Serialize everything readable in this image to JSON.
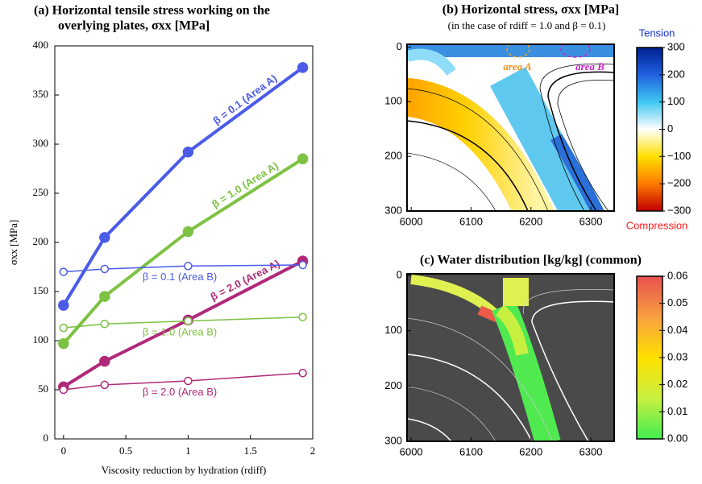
{
  "chart_data": [
    {
      "type": "line",
      "title": [
        "(a) Horizontal tensile stress working on the",
        "overlying plates, σxx [MPa]"
      ],
      "xlabel": "Viscosity reduction by hydration (rdiff)",
      "ylabel": "σxx [MPa]",
      "x": [
        0,
        0.33,
        1,
        1.92
      ],
      "xlim": [
        -0.07,
        2
      ],
      "xticks": [
        0,
        0.5,
        1,
        1.5,
        2
      ],
      "ylim": [
        0,
        400
      ],
      "yticks": [
        0,
        50,
        100,
        150,
        200,
        250,
        300,
        350,
        400
      ],
      "series": [
        {
          "name": "β = 0.1 (Area A)",
          "color": "#4a5be8",
          "marker": "filled",
          "linewidth": 4,
          "values": [
            136,
            205,
            292,
            378
          ]
        },
        {
          "name": "β = 1.0 (Area A)",
          "color": "#7dc242",
          "marker": "filled",
          "linewidth": 4,
          "values": [
            97,
            145,
            211,
            285
          ]
        },
        {
          "name": "β = 2.0 (Area A)",
          "color": "#b0287a",
          "marker": "filled",
          "linewidth": 4,
          "values": [
            53,
            79,
            121,
            181
          ]
        },
        {
          "name": "β = 0.1 (Area B)",
          "color": "#4a5be8",
          "marker": "open",
          "linewidth": 1.5,
          "values": [
            170,
            173,
            176,
            177
          ]
        },
        {
          "name": "β = 1.0 (Area B)",
          "color": "#7dc242",
          "marker": "open",
          "linewidth": 1.5,
          "values": [
            113,
            117,
            120,
            124
          ]
        },
        {
          "name": "β = 2.0 (Area B)",
          "color": "#b0287a",
          "marker": "open",
          "linewidth": 1.5,
          "values": [
            50,
            55,
            59,
            67
          ]
        }
      ]
    },
    {
      "type": "heatmap",
      "title": "(b) Horizontal stress, σxx [MPa]",
      "subtitle": "(in the case of rdiff = 1.0 and β = 0.1)",
      "annotations": [
        "area A",
        "area B"
      ],
      "xlim": [
        5993,
        6339
      ],
      "xticks": [
        6000,
        6100,
        6200,
        6300
      ],
      "ylim": [
        300,
        -5
      ],
      "yticks": [
        0,
        100,
        200,
        300
      ],
      "colorbar": {
        "colors": [
          "#c00000",
          "#ff7a00",
          "#ffe000",
          "#ffffff",
          "#40c8f0",
          "#2060e0",
          "#002090"
        ],
        "lim": [
          -300,
          300
        ],
        "ticks": [
          300,
          200,
          100,
          0,
          {
            "value": -100,
            "label": "−100"
          },
          {
            "value": -200,
            "label": "−200"
          },
          {
            "value": -300,
            "label": "−300"
          }
        ],
        "top_label": "Tension",
        "bottom_label": "Compression"
      }
    },
    {
      "type": "heatmap",
      "title": "(c) Water distribution [kg/kg] (common)",
      "xlim": [
        5993,
        6339
      ],
      "xticks": [
        6000,
        6100,
        6200,
        6300
      ],
      "ylim": [
        300,
        -3
      ],
      "yticks": [
        0,
        100,
        200,
        300
      ],
      "colorbar": {
        "colors": [
          "#40ee50",
          "#c8f040",
          "#ffe000",
          "#f8a040",
          "#e85050"
        ],
        "lim": [
          0,
          0.06
        ],
        "ticks": [
          {
            "value": 0.06,
            "label": "0.06"
          },
          {
            "value": 0.05,
            "label": "0.05"
          },
          {
            "value": 0.04,
            "label": "0.04"
          },
          {
            "value": 0.03,
            "label": "0.03"
          },
          {
            "value": 0.02,
            "label": "0.02"
          },
          {
            "value": 0.01,
            "label": "0.01"
          },
          {
            "value": 0,
            "label": "0.00"
          }
        ]
      }
    }
  ]
}
